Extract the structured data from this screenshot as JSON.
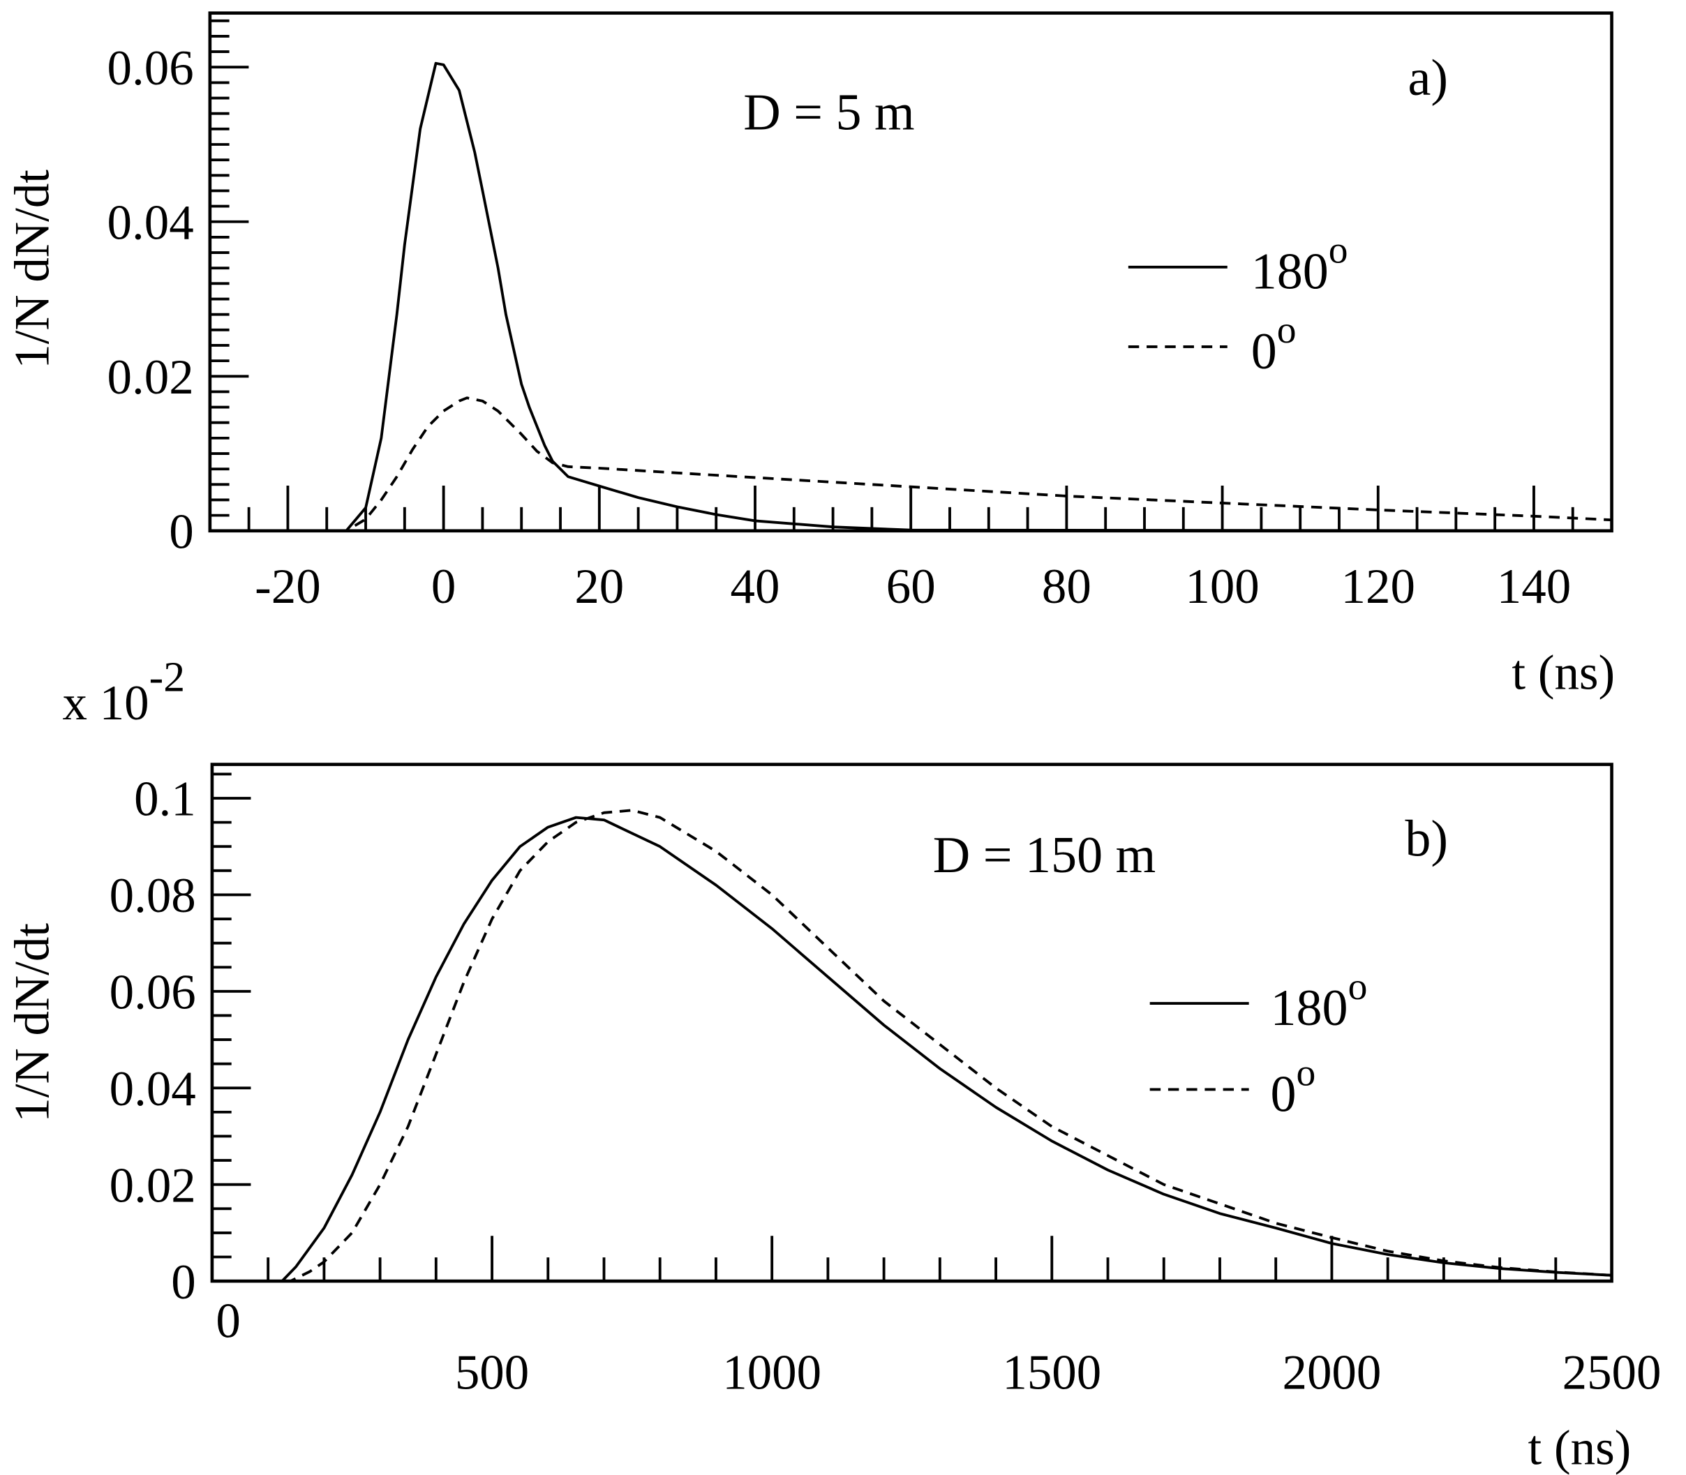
{
  "chart_data": [
    {
      "type": "line",
      "panel_label": "a)",
      "annotation": "D = 5 m",
      "xlabel": "t (ns)",
      "ylabel": "1/N dN/dt",
      "xlim": [
        -30,
        150
      ],
      "ylim": [
        0,
        0.067
      ],
      "xticks": [
        -20,
        0,
        20,
        40,
        60,
        80,
        100,
        120,
        140
      ],
      "xtick_labels": [
        "-20",
        "0",
        "20",
        "40",
        "60",
        "80",
        "100",
        "120",
        "140"
      ],
      "yticks": [
        0,
        0.02,
        0.04,
        0.06
      ],
      "ytick_labels": [
        "0",
        "0.02",
        "0.04",
        "0.06"
      ],
      "legend": {
        "placement": "right",
        "entries": [
          {
            "label": "180",
            "sup": "o",
            "style": "solid"
          },
          {
            "label": "0",
            "sup": "o",
            "style": "dashed"
          }
        ]
      },
      "series": [
        {
          "name": "180°",
          "style": "solid",
          "x": [
            -30,
            -12.5,
            -10,
            -8,
            -6,
            -5,
            -3,
            -1,
            0,
            2,
            4,
            5,
            7,
            8,
            10,
            11,
            13,
            14,
            16,
            20,
            25,
            30,
            35,
            40,
            50,
            60,
            150
          ],
          "y": [
            0,
            0,
            0.003,
            0.012,
            0.028,
            0.037,
            0.052,
            0.0605,
            0.0603,
            0.057,
            0.049,
            0.044,
            0.034,
            0.028,
            0.019,
            0.016,
            0.011,
            0.009,
            0.007,
            0.0058,
            0.0043,
            0.0031,
            0.0021,
            0.0013,
            0.0005,
            0.0001,
            0
          ]
        },
        {
          "name": "0°",
          "style": "dashed",
          "x": [
            -30,
            -12.5,
            -10,
            -8,
            -6,
            -4,
            -2,
            0,
            2,
            3,
            5,
            7,
            10,
            12,
            14,
            16,
            20,
            30,
            40,
            60,
            80,
            100,
            120,
            140,
            150
          ],
          "y": [
            0,
            0,
            0.0015,
            0.004,
            0.007,
            0.0105,
            0.0135,
            0.0155,
            0.0168,
            0.0172,
            0.0168,
            0.0155,
            0.0125,
            0.0103,
            0.0088,
            0.0083,
            0.0081,
            0.0075,
            0.0069,
            0.0057,
            0.0045,
            0.0036,
            0.0027,
            0.0019,
            0.0014
          ]
        }
      ]
    },
    {
      "type": "line",
      "panel_label": "b)",
      "annotation": "D = 150 m",
      "xlabel": "t (ns)",
      "ylabel": "1/N dN/dt",
      "scale_note": "x 10",
      "scale_exp": "-2",
      "xlim": [
        0,
        2500
      ],
      "ylim": [
        0,
        0.107
      ],
      "xticks": [
        0,
        500,
        1000,
        1500,
        2000,
        2500
      ],
      "xtick_labels": [
        "0",
        "500",
        "1000",
        "1500",
        "2000",
        "2500"
      ],
      "yticks": [
        0,
        0.02,
        0.04,
        0.06,
        0.08,
        0.1
      ],
      "ytick_labels": [
        "0",
        "0.02",
        "0.04",
        "0.06",
        "0.08",
        "0.1"
      ],
      "legend": {
        "placement": "right",
        "entries": [
          {
            "label": "180",
            "sup": "o",
            "style": "solid"
          },
          {
            "label": "0",
            "sup": "o",
            "style": "dashed"
          }
        ]
      },
      "series": [
        {
          "name": "180°",
          "style": "solid",
          "x": [
            0,
            125,
            150,
            200,
            250,
            300,
            350,
            400,
            450,
            500,
            550,
            600,
            650,
            700,
            800,
            900,
            1000,
            1100,
            1200,
            1300,
            1400,
            1500,
            1600,
            1700,
            1800,
            1900,
            2000,
            2100,
            2200,
            2300,
            2400,
            2500
          ],
          "y": [
            0,
            0,
            0.003,
            0.011,
            0.022,
            0.035,
            0.05,
            0.063,
            0.074,
            0.083,
            0.09,
            0.094,
            0.096,
            0.0955,
            0.09,
            0.082,
            0.073,
            0.063,
            0.053,
            0.044,
            0.036,
            0.029,
            0.023,
            0.018,
            0.014,
            0.011,
            0.0078,
            0.0055,
            0.0038,
            0.0026,
            0.0018,
            0.0012
          ]
        },
        {
          "name": "0°",
          "style": "dashed",
          "x": [
            0,
            140,
            175,
            200,
            250,
            300,
            350,
            400,
            450,
            500,
            550,
            600,
            650,
            700,
            750,
            800,
            900,
            1000,
            1100,
            1200,
            1300,
            1400,
            1500,
            1600,
            1700,
            1800,
            1900,
            2000,
            2100,
            2200,
            2300,
            2400,
            2500
          ],
          "y": [
            0,
            0,
            0.002,
            0.004,
            0.01,
            0.02,
            0.032,
            0.047,
            0.062,
            0.075,
            0.085,
            0.091,
            0.095,
            0.097,
            0.0975,
            0.096,
            0.089,
            0.08,
            0.069,
            0.058,
            0.049,
            0.04,
            0.032,
            0.026,
            0.02,
            0.016,
            0.012,
            0.009,
            0.0062,
            0.0042,
            0.0028,
            0.0019,
            0.0012
          ]
        }
      ]
    }
  ]
}
